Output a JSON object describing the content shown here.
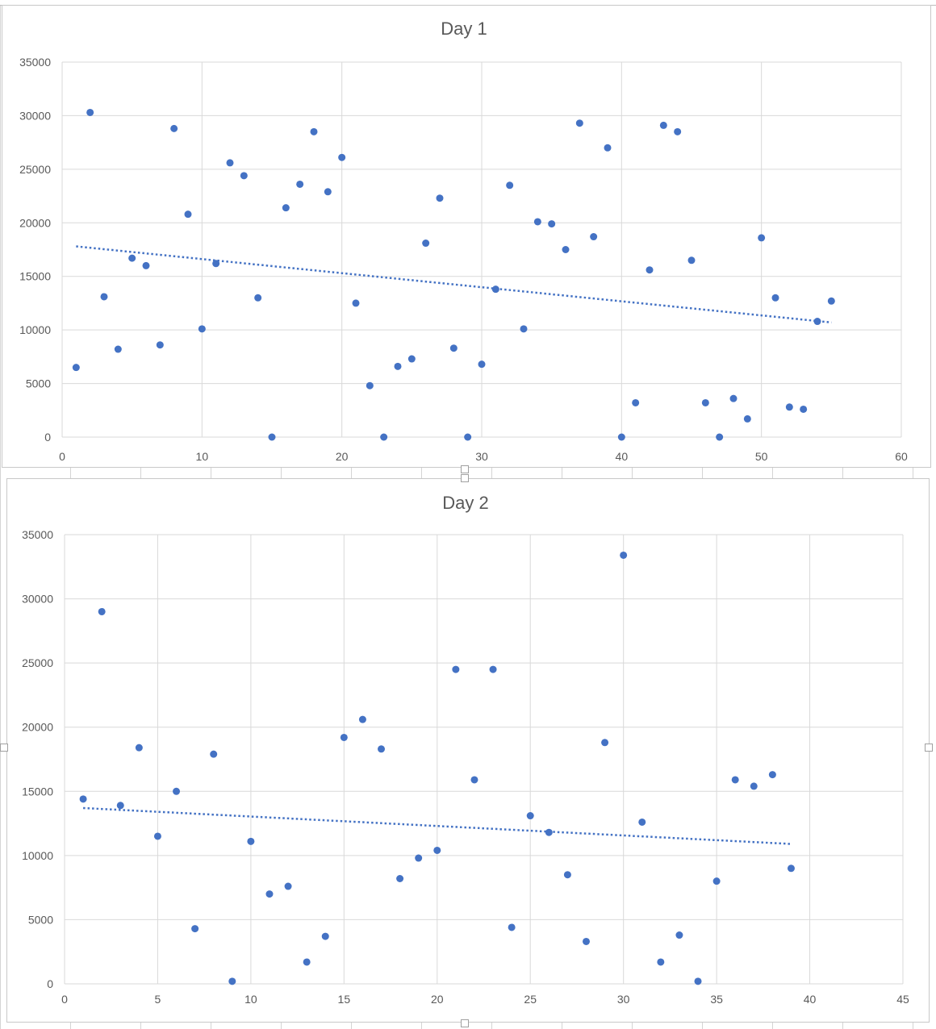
{
  "chart_data": [
    {
      "type": "scatter",
      "title": "Day 1",
      "xlim": [
        0,
        60
      ],
      "ylim": [
        0,
        35000
      ],
      "x_ticks": [
        0,
        10,
        20,
        30,
        40,
        50,
        60
      ],
      "y_ticks": [
        0,
        5000,
        10000,
        15000,
        20000,
        25000,
        30000,
        35000
      ],
      "grid": true,
      "marker_color": "#4472C4",
      "trendline": {
        "type": "linear",
        "style": "dotted",
        "x": [
          1,
          55
        ],
        "y": [
          17800,
          10700
        ]
      },
      "series": [
        {
          "x": [
            1,
            2,
            3,
            4,
            5,
            6,
            7,
            8,
            9,
            10,
            11,
            12,
            13,
            14,
            15,
            16,
            17,
            18,
            19,
            20,
            21,
            22,
            23,
            24,
            25,
            26,
            27,
            28,
            29,
            30,
            31,
            32,
            33,
            34,
            35,
            36,
            37,
            38,
            39,
            40,
            41,
            42,
            43,
            44,
            45,
            46,
            47,
            48,
            49,
            50,
            51,
            52,
            53,
            54,
            55
          ],
          "y": [
            6500,
            30300,
            13100,
            8200,
            16700,
            16000,
            8600,
            28800,
            20800,
            10100,
            16200,
            25600,
            24400,
            13000,
            0,
            21400,
            23600,
            28500,
            22900,
            26100,
            12500,
            4800,
            0,
            6600,
            7300,
            18100,
            22300,
            8300,
            0,
            6800,
            13800,
            23500,
            10100,
            20100,
            19900,
            17500,
            29300,
            18700,
            27000,
            0,
            3200,
            15600,
            29100,
            28500,
            16500,
            3200,
            0,
            3600,
            1700,
            18600,
            13000,
            2800,
            2600,
            10800,
            12700
          ]
        }
      ]
    },
    {
      "type": "scatter",
      "title": "Day 2",
      "xlim": [
        0,
        45
      ],
      "ylim": [
        0,
        35000
      ],
      "x_ticks": [
        0,
        5,
        10,
        15,
        20,
        25,
        30,
        35,
        40,
        45
      ],
      "y_ticks": [
        0,
        5000,
        10000,
        15000,
        20000,
        25000,
        30000,
        35000
      ],
      "grid": true,
      "marker_color": "#4472C4",
      "trendline": {
        "type": "linear",
        "style": "dotted",
        "x": [
          1,
          39
        ],
        "y": [
          13700,
          10900
        ]
      },
      "series": [
        {
          "x": [
            1,
            2,
            3,
            4,
            5,
            6,
            7,
            8,
            9,
            10,
            11,
            12,
            13,
            14,
            15,
            16,
            17,
            18,
            19,
            20,
            21,
            22,
            23,
            24,
            25,
            26,
            27,
            28,
            29,
            30,
            31,
            32,
            33,
            34,
            35,
            36,
            37,
            38,
            39
          ],
          "y": [
            14400,
            29000,
            13900,
            18400,
            11500,
            15000,
            4300,
            17900,
            200,
            11100,
            7000,
            7600,
            1700,
            3700,
            19200,
            20600,
            18300,
            8200,
            9800,
            10400,
            24500,
            15900,
            24500,
            4400,
            13100,
            11800,
            8500,
            3300,
            18800,
            33400,
            12600,
            1700,
            3800,
            200,
            8000,
            15900,
            15400,
            16300,
            9000
          ]
        }
      ]
    }
  ]
}
